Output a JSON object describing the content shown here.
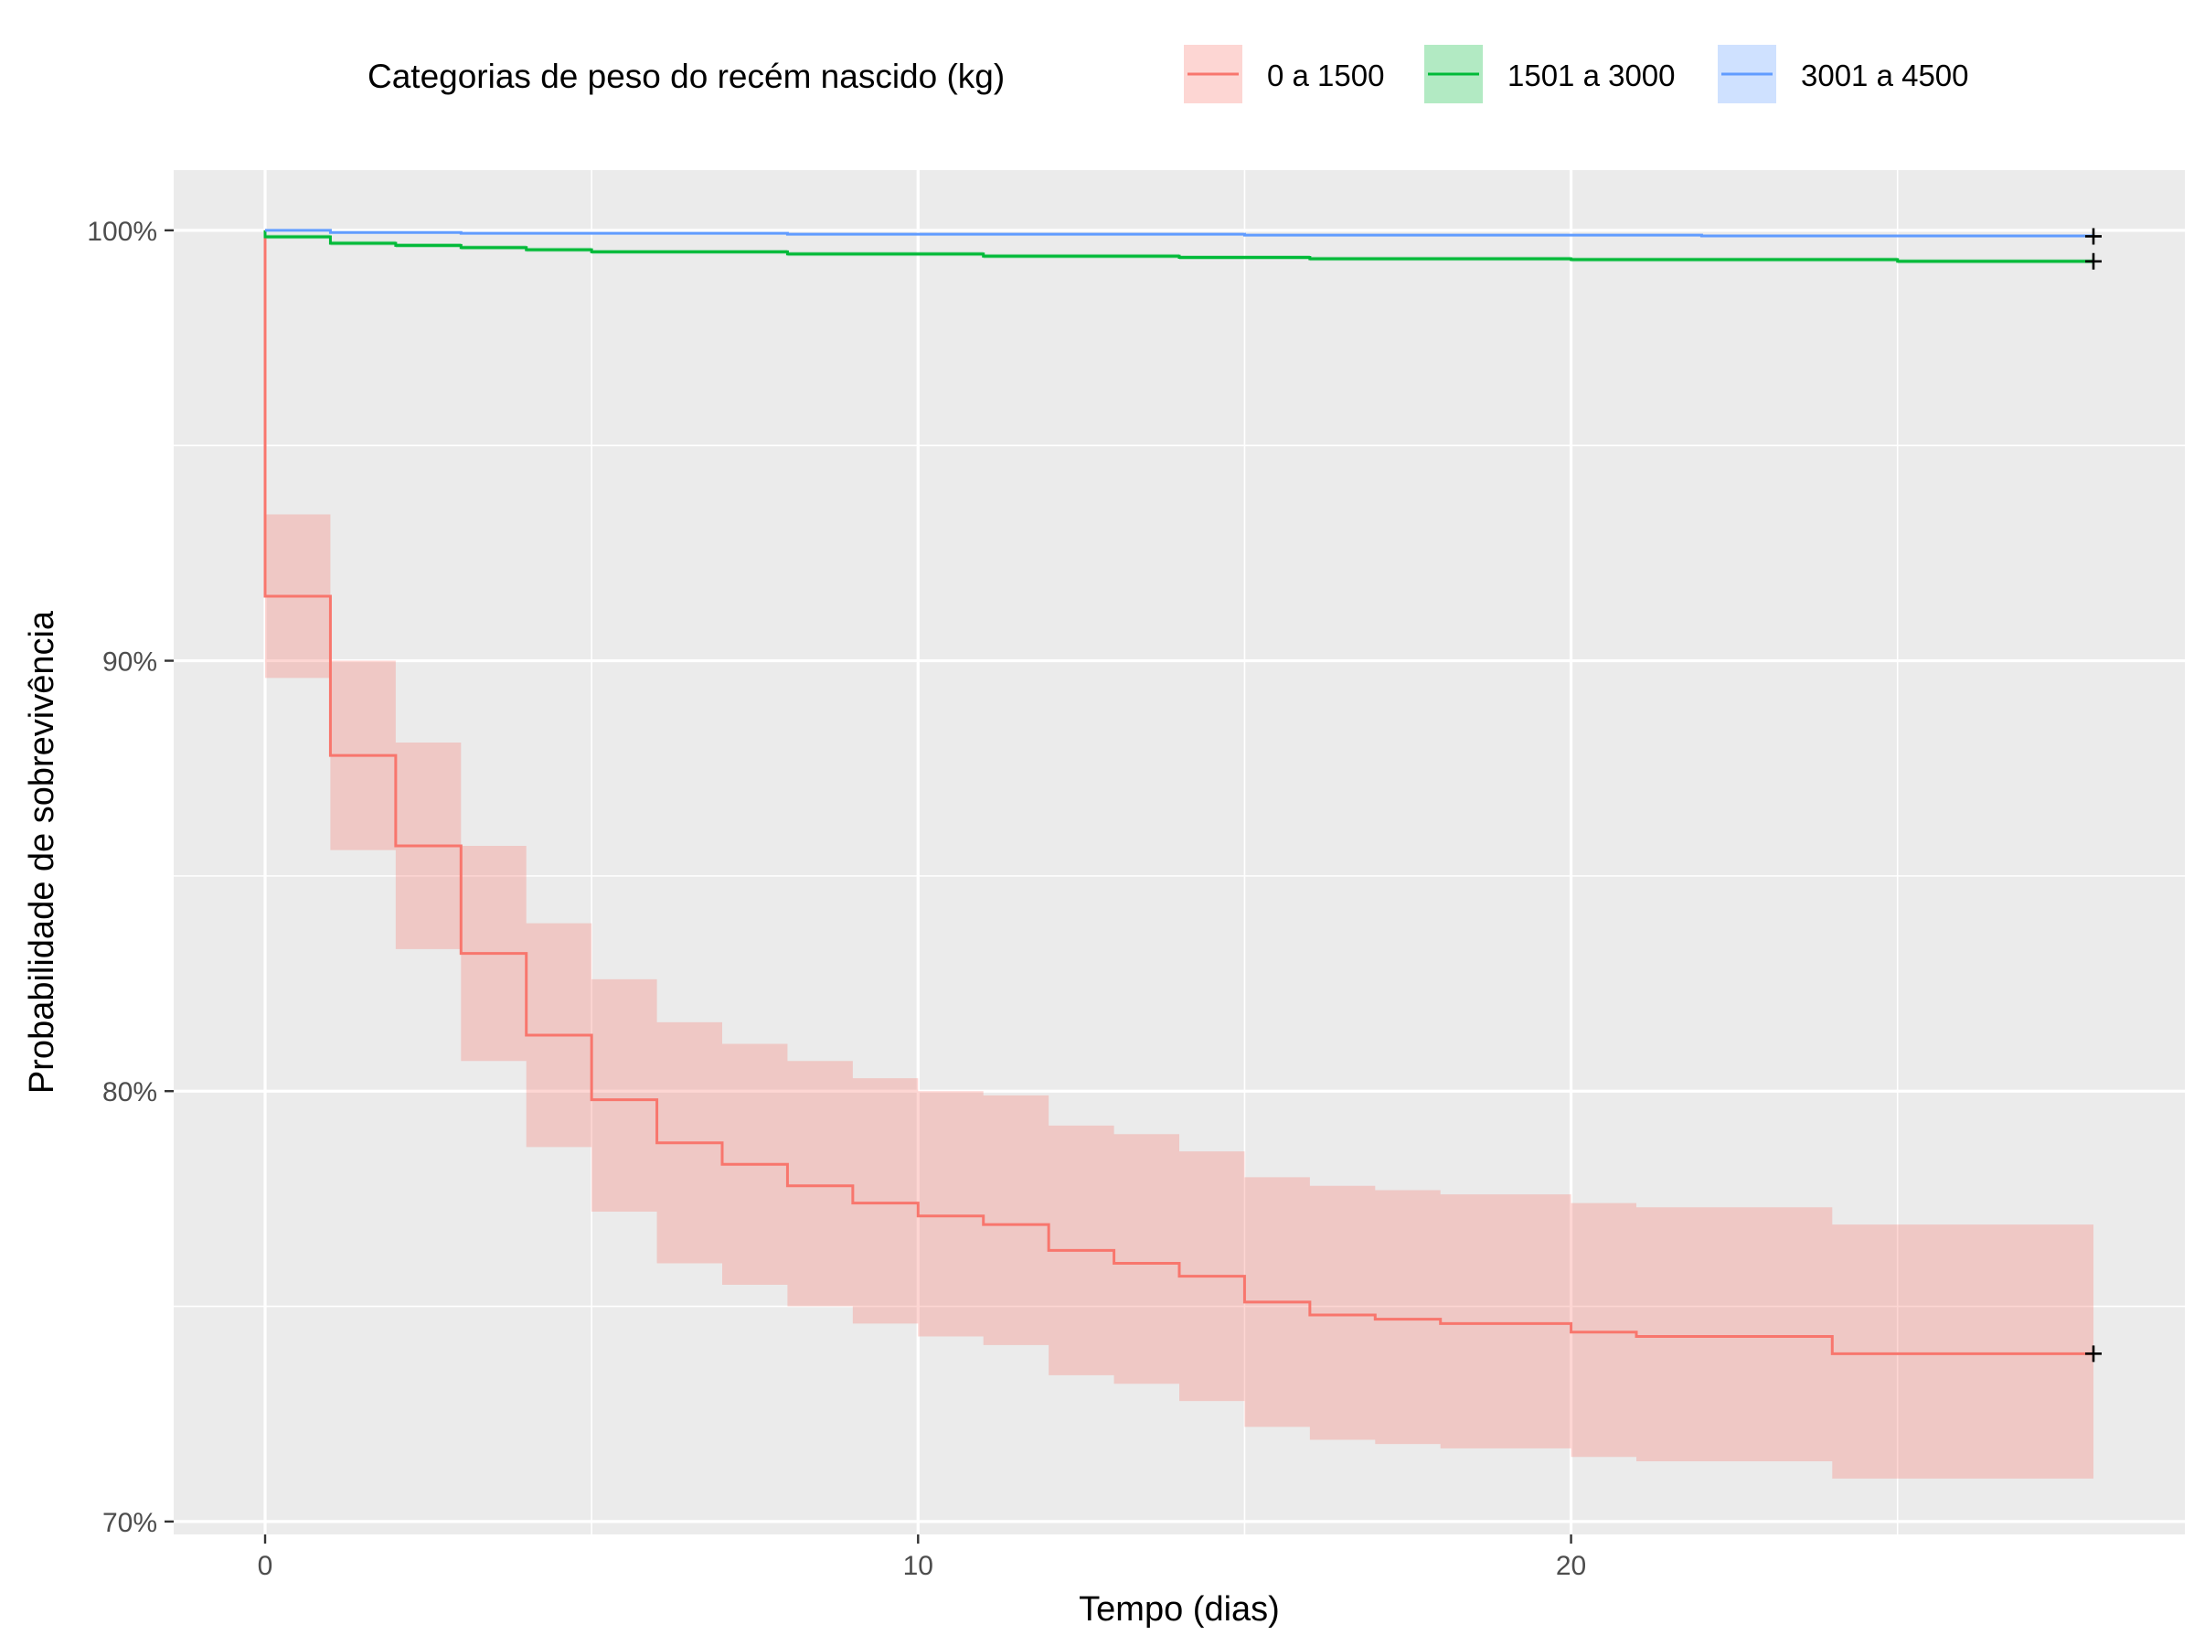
{
  "chart_data": {
    "type": "line",
    "subtype": "kaplan-meier step survival curve with confidence bands",
    "title": "",
    "xlabel": "Tempo (dias)",
    "ylabel": "Probabilidade de sobrevivência",
    "xlim": [
      -1.4,
      29.4
    ],
    "ylim": [
      69.7,
      101.4
    ],
    "x_ticks": [
      0,
      10,
      20
    ],
    "x_tick_labels": [
      "0",
      "10",
      "20"
    ],
    "y_ticks": [
      70,
      80,
      90,
      100
    ],
    "y_tick_labels": [
      "70%",
      "80%",
      "90%",
      "100%"
    ],
    "grid": true,
    "legend": {
      "title": "Categorias de peso do recém nascido (kg)",
      "position": "top"
    },
    "series": [
      {
        "name": "0 a 1500",
        "color": "#F8766D",
        "band_color": "#F8766D",
        "censor_x": 28,
        "steps": [
          {
            "x": 0,
            "y": 100.0,
            "lower": 100.0,
            "upper": 100.0
          },
          {
            "x": 0,
            "y": 91.5,
            "lower": 89.6,
            "upper": 93.4
          },
          {
            "x": 1,
            "y": 87.8,
            "lower": 85.6,
            "upper": 90.0
          },
          {
            "x": 2,
            "y": 85.7,
            "lower": 83.3,
            "upper": 88.1
          },
          {
            "x": 3,
            "y": 83.2,
            "lower": 80.7,
            "upper": 85.7
          },
          {
            "x": 4,
            "y": 81.3,
            "lower": 78.7,
            "upper": 83.9
          },
          {
            "x": 5,
            "y": 79.8,
            "lower": 77.2,
            "upper": 82.6
          },
          {
            "x": 6,
            "y": 78.8,
            "lower": 76.0,
            "upper": 81.6
          },
          {
            "x": 7,
            "y": 78.3,
            "lower": 75.5,
            "upper": 81.1
          },
          {
            "x": 8,
            "y": 77.8,
            "lower": 75.0,
            "upper": 80.7
          },
          {
            "x": 9,
            "y": 77.4,
            "lower": 74.6,
            "upper": 80.3
          },
          {
            "x": 10,
            "y": 77.1,
            "lower": 74.3,
            "upper": 80.0
          },
          {
            "x": 11,
            "y": 76.9,
            "lower": 74.1,
            "upper": 79.9
          },
          {
            "x": 12,
            "y": 76.3,
            "lower": 73.4,
            "upper": 79.2
          },
          {
            "x": 13,
            "y": 76.0,
            "lower": 73.2,
            "upper": 79.0
          },
          {
            "x": 14,
            "y": 75.7,
            "lower": 72.8,
            "upper": 78.6
          },
          {
            "x": 15,
            "y": 75.1,
            "lower": 72.2,
            "upper": 78.0
          },
          {
            "x": 16,
            "y": 74.8,
            "lower": 71.9,
            "upper": 77.8
          },
          {
            "x": 17,
            "y": 74.7,
            "lower": 71.8,
            "upper": 77.7
          },
          {
            "x": 18,
            "y": 74.6,
            "lower": 71.7,
            "upper": 77.6
          },
          {
            "x": 20,
            "y": 74.4,
            "lower": 71.5,
            "upper": 77.4
          },
          {
            "x": 21,
            "y": 74.3,
            "lower": 71.4,
            "upper": 77.3
          },
          {
            "x": 24,
            "y": 73.9,
            "lower": 71.0,
            "upper": 76.9
          },
          {
            "x": 28,
            "y": 73.9,
            "lower": 71.0,
            "upper": 76.9
          }
        ]
      },
      {
        "name": "1501 a 3000",
        "color": "#00BA38",
        "band_color": "#00BA38",
        "censor_x": 28,
        "steps": [
          {
            "x": 0,
            "y": 100.0,
            "lower": 100.0,
            "upper": 100.0
          },
          {
            "x": 0,
            "y": 99.85,
            "lower": 99.8,
            "upper": 99.9
          },
          {
            "x": 1,
            "y": 99.7,
            "lower": 99.65,
            "upper": 99.75
          },
          {
            "x": 2,
            "y": 99.65,
            "lower": 99.6,
            "upper": 99.7
          },
          {
            "x": 3,
            "y": 99.6,
            "lower": 99.55,
            "upper": 99.65
          },
          {
            "x": 4,
            "y": 99.55,
            "lower": 99.5,
            "upper": 99.6
          },
          {
            "x": 5,
            "y": 99.5,
            "lower": 99.45,
            "upper": 99.55
          },
          {
            "x": 8,
            "y": 99.45,
            "lower": 99.4,
            "upper": 99.5
          },
          {
            "x": 11,
            "y": 99.4,
            "lower": 99.35,
            "upper": 99.45
          },
          {
            "x": 14,
            "y": 99.37,
            "lower": 99.32,
            "upper": 99.42
          },
          {
            "x": 16,
            "y": 99.34,
            "lower": 99.29,
            "upper": 99.39
          },
          {
            "x": 20,
            "y": 99.32,
            "lower": 99.27,
            "upper": 99.37
          },
          {
            "x": 25,
            "y": 99.28,
            "lower": 99.23,
            "upper": 99.33
          },
          {
            "x": 28,
            "y": 99.28,
            "lower": 99.23,
            "upper": 99.33
          }
        ]
      },
      {
        "name": "3001 a 4500",
        "color": "#619CFF",
        "band_color": "#619CFF",
        "censor_x": 28,
        "steps": [
          {
            "x": 0,
            "y": 100.0,
            "lower": 99.98,
            "upper": 100.0
          },
          {
            "x": 1,
            "y": 99.95,
            "lower": 99.93,
            "upper": 99.97
          },
          {
            "x": 3,
            "y": 99.93,
            "lower": 99.91,
            "upper": 99.95
          },
          {
            "x": 8,
            "y": 99.91,
            "lower": 99.89,
            "upper": 99.93
          },
          {
            "x": 15,
            "y": 99.89,
            "lower": 99.87,
            "upper": 99.91
          },
          {
            "x": 22,
            "y": 99.87,
            "lower": 99.85,
            "upper": 99.89
          },
          {
            "x": 28,
            "y": 99.86,
            "lower": 99.84,
            "upper": 99.88
          }
        ]
      }
    ]
  }
}
